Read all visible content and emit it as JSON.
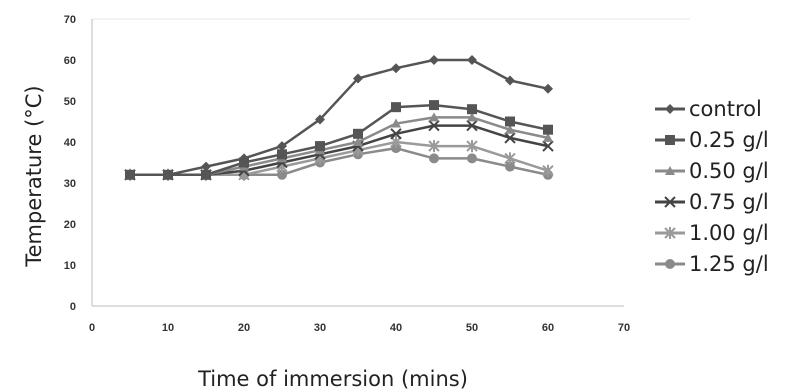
{
  "chart_data": {
    "type": "line",
    "title": "",
    "xlabel": "Time of immersion (mins)",
    "ylabel": "Temperature (°C)",
    "xlim": [
      0,
      70
    ],
    "ylim": [
      0,
      70
    ],
    "xticks": [
      0,
      10,
      20,
      30,
      40,
      50,
      60,
      70
    ],
    "yticks": [
      0,
      10,
      20,
      30,
      40,
      50,
      60,
      70
    ],
    "grid": false,
    "legend_position": "right",
    "x": [
      5,
      10,
      15,
      20,
      25,
      30,
      35,
      40,
      45,
      50,
      55,
      60
    ],
    "series": [
      {
        "name": "control",
        "marker": "diamond",
        "color": "#555555",
        "values": [
          32,
          32,
          34,
          36,
          39,
          45.5,
          55.5,
          58,
          60,
          60,
          55,
          53
        ]
      },
      {
        "name": "0.25 g/l",
        "marker": "square",
        "color": "#555555",
        "values": [
          32,
          32,
          32,
          35,
          37,
          39,
          42,
          48.5,
          49,
          48,
          45,
          43
        ]
      },
      {
        "name": "0.50 g/l",
        "marker": "triangle",
        "color": "#8a8a8a",
        "values": [
          32,
          32,
          32,
          34,
          36,
          38,
          40,
          44.5,
          46,
          46,
          43,
          41
        ]
      },
      {
        "name": "0.75 g/l",
        "marker": "x",
        "color": "#444444",
        "values": [
          32,
          32,
          32,
          33,
          35,
          37,
          39,
          42,
          44,
          44,
          41,
          39
        ]
      },
      {
        "name": "1.00 g/l",
        "marker": "asterisk",
        "color": "#9a9a9a",
        "values": [
          32,
          32,
          32,
          32,
          34,
          36,
          38,
          40,
          39,
          39,
          36,
          33
        ]
      },
      {
        "name": "1.25 g/l",
        "marker": "circle",
        "color": "#8a8a8a",
        "values": [
          32,
          32,
          32,
          32,
          32,
          35,
          37,
          38.5,
          36,
          36,
          34,
          32
        ]
      }
    ]
  }
}
